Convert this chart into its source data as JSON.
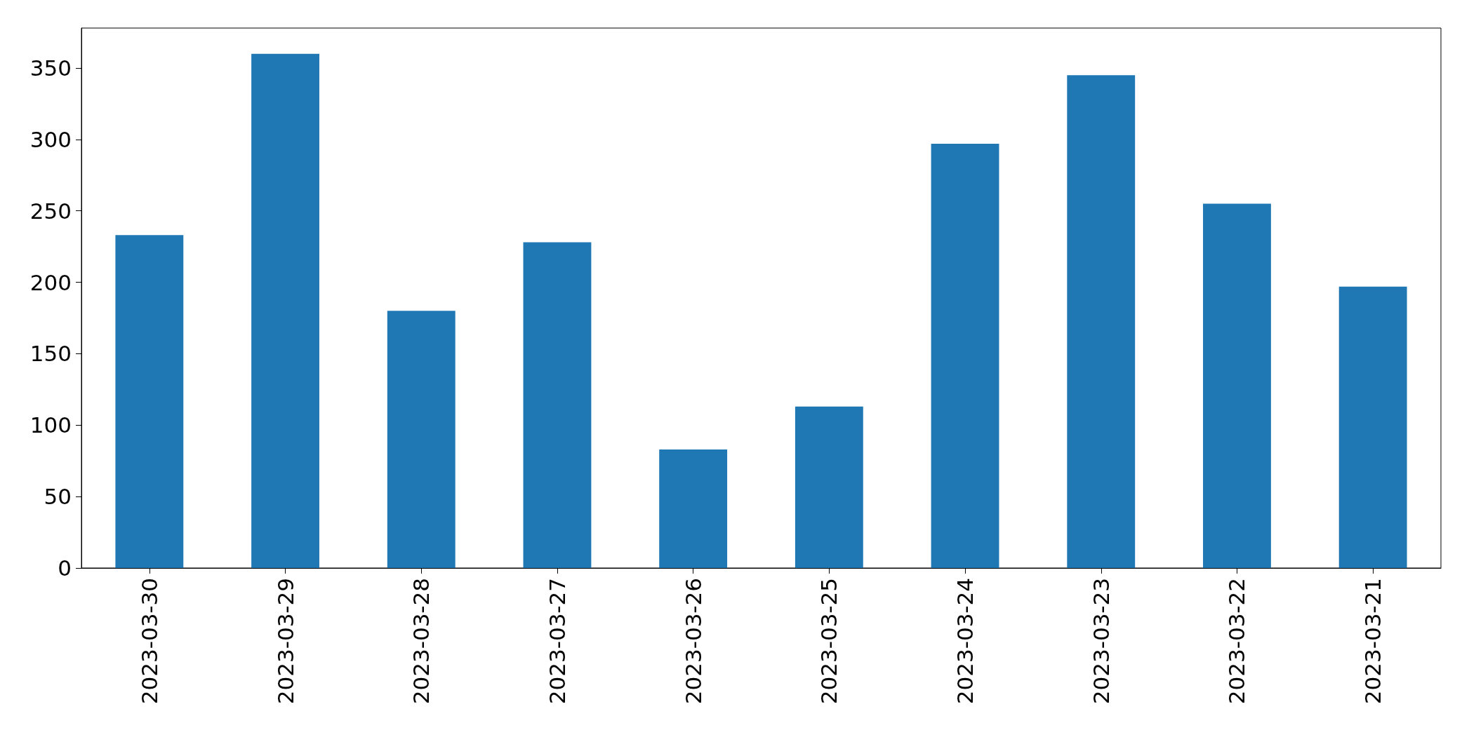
{
  "chart_data": {
    "type": "bar",
    "categories": [
      "2023-03-30",
      "2023-03-29",
      "2023-03-28",
      "2023-03-27",
      "2023-03-26",
      "2023-03-25",
      "2023-03-24",
      "2023-03-23",
      "2023-03-22",
      "2023-03-21"
    ],
    "values": [
      233,
      360,
      180,
      228,
      83,
      113,
      297,
      345,
      255,
      197
    ],
    "color": "#1f77b4",
    "ylim": [
      0,
      378
    ],
    "yticks": [
      0,
      50,
      100,
      150,
      200,
      250,
      300,
      350
    ],
    "grid": false
  }
}
